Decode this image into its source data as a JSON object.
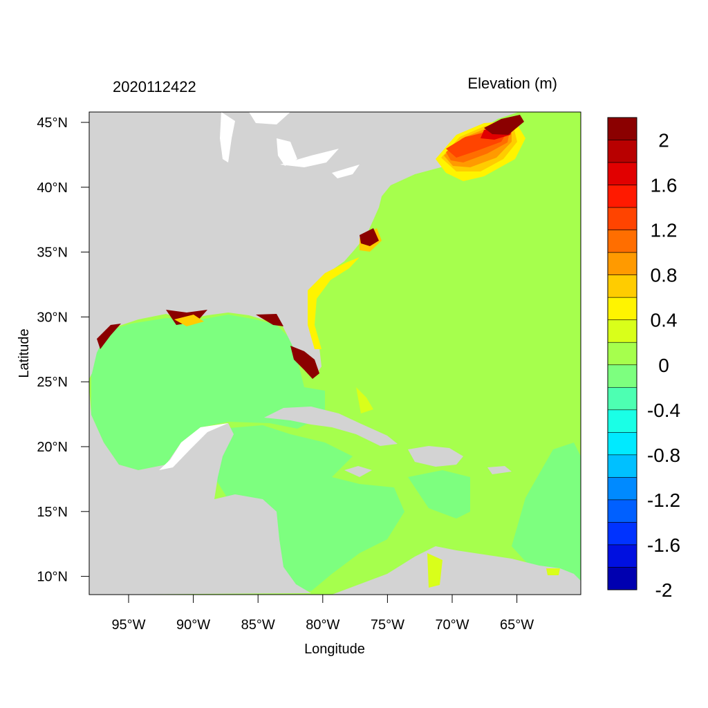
{
  "left_title": "2020112422",
  "right_title": "Elevation (m)",
  "x_axis_label": "Longitude",
  "y_axis_label": "Latitude",
  "x_ticks": [
    "95°W",
    "90°W",
    "85°W",
    "80°W",
    "75°W",
    "70°W",
    "65°W"
  ],
  "y_ticks": [
    "45°N",
    "40°N",
    "35°N",
    "30°N",
    "25°N",
    "20°N",
    "15°N",
    "10°N"
  ],
  "colorbar": {
    "colors": [
      "#8b0000",
      "#b80000",
      "#e10000",
      "#ff1a00",
      "#ff4400",
      "#ff6e00",
      "#ff9a00",
      "#ffcc00",
      "#fff400",
      "#d9ff1a",
      "#a6ff4d",
      "#7dff7f",
      "#4dffb2",
      "#1affe6",
      "#00eaff",
      "#00c0ff",
      "#008aff",
      "#0060ff",
      "#0033ff",
      "#0010e0",
      "#0000b0"
    ],
    "labels": [
      "2",
      "1.6",
      "1.2",
      "0.8",
      "0.4",
      "0",
      "-0.4",
      "-0.8",
      "-1.2",
      "-1.6",
      "-2"
    ]
  },
  "colors": {
    "land": "#d3d3d3",
    "ocean_zero": "#a6ff4d",
    "gulf_neg": "#7dff7f",
    "surge_high": "#8b0000",
    "lakes": "#ffffff"
  }
}
